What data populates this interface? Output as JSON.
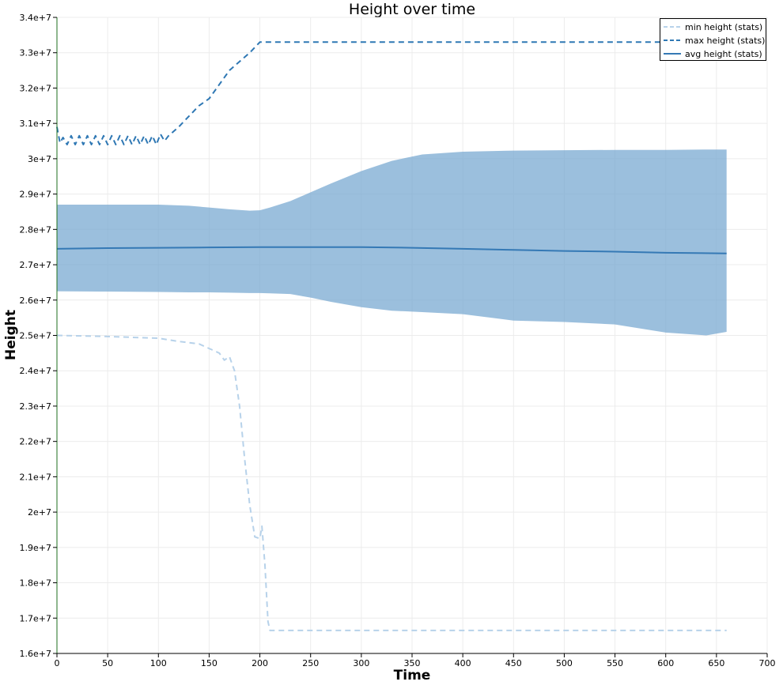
{
  "chart_data": {
    "type": "line",
    "title": "Height over time",
    "xlabel": "Time",
    "ylabel": "Height",
    "xlim": [
      0,
      700
    ],
    "ylim": [
      16000000,
      34000000
    ],
    "x_ticks": [
      0,
      50,
      100,
      150,
      200,
      250,
      300,
      350,
      400,
      450,
      500,
      550,
      600,
      650,
      700
    ],
    "x_tick_labels": [
      "0",
      "50",
      "100",
      "150",
      "200",
      "250",
      "300",
      "350",
      "400",
      "450",
      "500",
      "550",
      "600",
      "650",
      "700"
    ],
    "y_ticks": [
      16000000,
      17000000,
      18000000,
      19000000,
      20000000,
      21000000,
      22000000,
      23000000,
      24000000,
      25000000,
      26000000,
      27000000,
      28000000,
      29000000,
      30000000,
      31000000,
      32000000,
      33000000,
      34000000
    ],
    "y_tick_labels": [
      "1.6e+7",
      "1.7e+7",
      "1.8e+7",
      "1.9e+7",
      "2e+7",
      "2.1e+7",
      "2.2e+7",
      "2.3e+7",
      "2.4e+7",
      "2.5e+7",
      "2.6e+7",
      "2.7e+7",
      "2.8e+7",
      "2.9e+7",
      "3e+7",
      "3.1e+7",
      "3.2e+7",
      "3.3e+7",
      "3.4e+7"
    ],
    "grid": true,
    "legend_position": "top-right",
    "colors": {
      "min": "#b7d2ea",
      "max": "#2f78b4",
      "avg": "#3579b5",
      "band": "#7aa9d1",
      "axis": "#1f6f1f",
      "grid": "#ececec"
    },
    "band": {
      "x": [
        0,
        50,
        100,
        130,
        150,
        170,
        190,
        200,
        210,
        230,
        250,
        270,
        300,
        330,
        360,
        400,
        450,
        500,
        550,
        600,
        640,
        660
      ],
      "upper": [
        28700000,
        28700000,
        28700000,
        28670000,
        28620000,
        28570000,
        28530000,
        28540000,
        28620000,
        28800000,
        29050000,
        29300000,
        29650000,
        29940000,
        30120000,
        30200000,
        30230000,
        30240000,
        30250000,
        30250000,
        30260000,
        30260000
      ],
      "lower": [
        26250000,
        26240000,
        26230000,
        26220000,
        26220000,
        26210000,
        26200000,
        26200000,
        26190000,
        26170000,
        26070000,
        25950000,
        25800000,
        25700000,
        25660000,
        25600000,
        25420000,
        25380000,
        25310000,
        25080000,
        25000000,
        25100000
      ]
    },
    "series": [
      {
        "name": "min height (stats)",
        "style": "dashed-light",
        "x": [
          0,
          50,
          100,
          120,
          140,
          160,
          165,
          170,
          175,
          180,
          185,
          190,
          195,
          200,
          202,
          205,
          208,
          210,
          215,
          300,
          400,
          500,
          600,
          660
        ],
        "y": [
          25000000,
          24970000,
          24920000,
          24830000,
          24760000,
          24500000,
          24300000,
          24400000,
          24000000,
          23000000,
          21500000,
          20200000,
          19300000,
          19250000,
          19600000,
          18500000,
          16900000,
          16650000,
          16650000,
          16650000,
          16650000,
          16650000,
          16650000,
          16650000
        ]
      },
      {
        "name": "max height (stats)",
        "style": "dashed-dark",
        "x": [
          0,
          3,
          6,
          10,
          14,
          18,
          22,
          26,
          30,
          34,
          38,
          42,
          46,
          50,
          54,
          58,
          62,
          66,
          70,
          74,
          78,
          82,
          86,
          90,
          94,
          98,
          102,
          106,
          110,
          120,
          130,
          140,
          150,
          160,
          170,
          180,
          190,
          200,
          250,
          300,
          400,
          500,
          600,
          660
        ],
        "y": [
          30900000,
          30450000,
          30600000,
          30400000,
          30650000,
          30400000,
          30650000,
          30400000,
          30650000,
          30400000,
          30650000,
          30400000,
          30650000,
          30400000,
          30650000,
          30400000,
          30650000,
          30400000,
          30650000,
          30400000,
          30650000,
          30400000,
          30650000,
          30400000,
          30650000,
          30400000,
          30700000,
          30500000,
          30650000,
          30900000,
          31200000,
          31500000,
          31700000,
          32100000,
          32500000,
          32750000,
          33000000,
          33300000,
          33300000,
          33300000,
          33300000,
          33300000,
          33300000,
          33300000
        ]
      },
      {
        "name": "avg height (stats)",
        "style": "solid",
        "x": [
          0,
          50,
          100,
          150,
          200,
          250,
          300,
          350,
          400,
          450,
          500,
          550,
          600,
          660
        ],
        "y": [
          27450000,
          27470000,
          27480000,
          27490000,
          27500000,
          27500000,
          27500000,
          27480000,
          27450000,
          27420000,
          27390000,
          27370000,
          27340000,
          27320000
        ]
      }
    ]
  }
}
